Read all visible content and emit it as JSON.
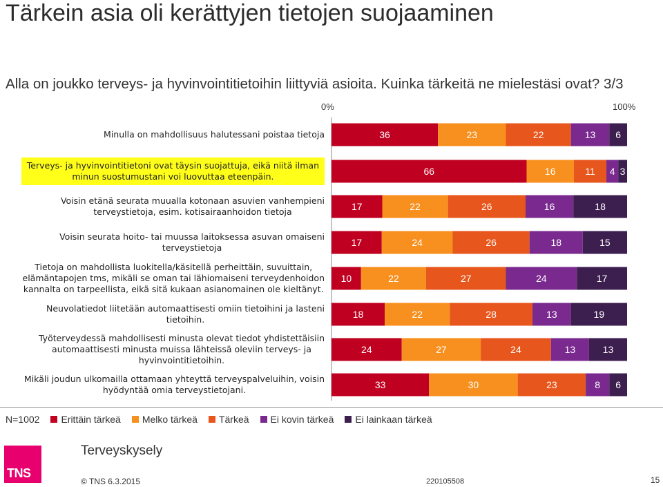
{
  "title": "Tärkein asia oli kerättyjen tietojen suojaaminen",
  "subtitle": "Alla on joukko terveys- ja hyvinvointitietoihin liittyviä asioita. Kuinka tärkeitä ne mielestäsi ovat? 3/3",
  "axis": {
    "min_label": "0%",
    "max_label": "100%"
  },
  "colors": {
    "erittain": "#c00020",
    "melko": "#f7901e",
    "tarkea": "#e7561c",
    "ei_kovin": "#7a2a8f",
    "ei_lainkaan": "#3c1f4f",
    "highlight": "#ffff1a"
  },
  "chart_data": {
    "type": "bar",
    "orientation": "horizontal",
    "stacked": true,
    "xlim": [
      0,
      100
    ],
    "categories": [
      "Minulla on mahdollisuus halutessani poistaa tietoja",
      "Terveys- ja hyvinvointitietoni ovat täysin suojattuja, eikä niitä ilman minun suostumustani voi luovuttaa eteenpäin.",
      "Voisin etänä seurata muualla kotonaan asuvien vanhempieni terveystietoja, esim. kotisairaanhoidon tietoja",
      "Voisin seurata hoito- tai muussa laitoksessa asuvan omaiseni terveystietoja",
      "Tietoja on mahdollista luokitella/käsitellä perheittäin, suvuittain, elämäntapojen tms, mikäli se oman tai lähiomaiseni terveydenhoidon kannalta on tarpeellista, eikä sitä kukaan asianomainen ole kieltänyt.",
      "Neuvolatiedot liitetään automaattisesti omiin tietoihini ja lasteni tietoihin.",
      "Työterveydessä mahdollisesti minusta olevat tiedot yhdistettäisiin automaattisesti minusta muissa lähteissä oleviin terveys- ja hyvinvointitietoihin.",
      "Mikäli joudun ulkomailla ottamaan yhteyttä terveyspalveluihin, voisin hyödyntää omia terveystietojani."
    ],
    "label_lines": [
      [
        "Minulla on mahdollisuus halutessani poistaa tietoja"
      ],
      [
        "Terveys- ja hyvinvointitietoni ovat täysin suojattuja, eikä niitä ilman",
        "minun suostumustani voi luovuttaa eteenpäin."
      ],
      [
        "Voisin etänä seurata muualla kotonaan asuvien vanhempieni",
        "terveystietoja, esim. kotisairaanhoidon tietoja"
      ],
      [
        "Voisin seurata hoito- tai muussa laitoksessa asuvan omaiseni",
        "terveystietoja"
      ],
      [
        "Tietoja on mahdollista luokitella/käsitellä perheittäin, suvuittain,",
        "elämäntapojen tms, mikäli se oman tai lähiomaiseni terveydenhoidon",
        "kannalta on tarpeellista, eikä sitä kukaan asianomainen ole kieltänyt."
      ],
      [
        "Neuvolatiedot liitetään automaattisesti omiin tietoihini ja lasteni",
        "tietoihin."
      ],
      [
        "Työterveydessä mahdollisesti minusta olevat tiedot yhdistettäisiin",
        "automaattisesti minusta muissa lähteissä oleviin terveys- ja",
        "hyvinvointitietoihin."
      ],
      [
        "Mikäli joudun ulkomailla ottamaan yhteyttä terveyspalveluihin, voisin",
        "hyödyntää omia terveystietojani."
      ]
    ],
    "highlighted_category": 1,
    "series": [
      {
        "name": "Erittäin tärkeä",
        "color": "#c00020",
        "values": [
          36,
          66,
          17,
          17,
          10,
          18,
          24,
          33
        ]
      },
      {
        "name": "Melko tärkeä",
        "color": "#f7901e",
        "values": [
          23,
          16,
          22,
          24,
          22,
          22,
          27,
          30
        ]
      },
      {
        "name": "Tärkeä",
        "color": "#e7561c",
        "values": [
          22,
          11,
          26,
          26,
          27,
          28,
          24,
          23
        ]
      },
      {
        "name": "Ei kovin tärkeä",
        "color": "#7a2a8f",
        "values": [
          13,
          4,
          16,
          18,
          24,
          13,
          13,
          8
        ]
      },
      {
        "name": "Ei lainkaan tärkeä",
        "color": "#3c1f4f",
        "values": [
          6,
          3,
          18,
          15,
          17,
          19,
          13,
          6
        ]
      }
    ]
  },
  "legend": {
    "n_label": "N=1002",
    "items": [
      "Erittäin tärkeä",
      "Melko tärkeä",
      "Tärkeä",
      "Ei kovin tärkeä",
      "Ei lainkaan tärkeä"
    ]
  },
  "footer": {
    "brand": "Terveyskysely",
    "logo_text": "TNS",
    "copyright": "© TNS 6.3.2015",
    "code": "220105508",
    "page": "15"
  }
}
